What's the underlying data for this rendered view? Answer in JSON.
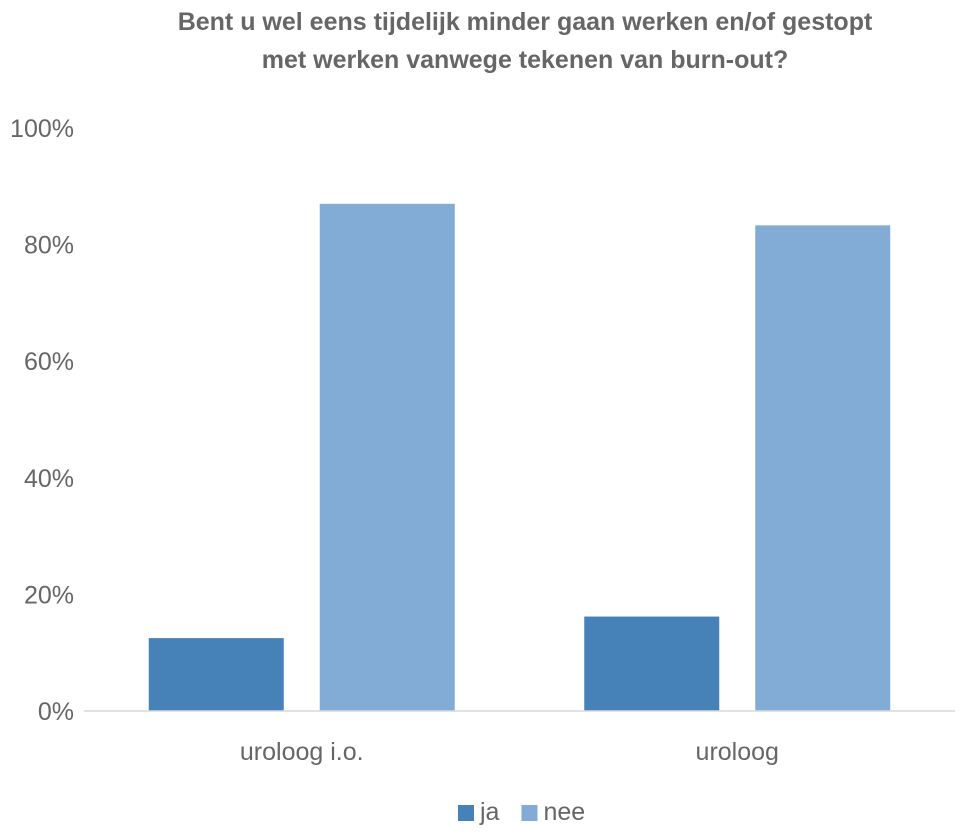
{
  "chart_data": {
    "type": "bar",
    "title": "Bent u wel eens tijdelijk minder gaan werken en/of gestopt met werken vanwege tekenen van burn-out?",
    "title_lines": [
      "Bent u wel eens tijdelijk minder gaan werken en/of gestopt",
      "met werken vanwege tekenen van burn-out?"
    ],
    "categories": [
      "uroloog i.o.",
      "uroloog"
    ],
    "series": [
      {
        "name": "ja",
        "color": "#4682B8",
        "values": [
          12.5,
          16.2
        ]
      },
      {
        "name": "nee",
        "color": "#82ACD5",
        "values": [
          87.0,
          83.3
        ]
      }
    ],
    "ylim": [
      0,
      100
    ],
    "yticks": [
      0,
      20,
      40,
      60,
      80,
      100
    ],
    "ytick_labels": [
      "0%",
      "20%",
      "40%",
      "60%",
      "80%",
      "100%"
    ],
    "xlabel": "",
    "ylabel": "",
    "grid": false,
    "legend_position": "bottom"
  }
}
